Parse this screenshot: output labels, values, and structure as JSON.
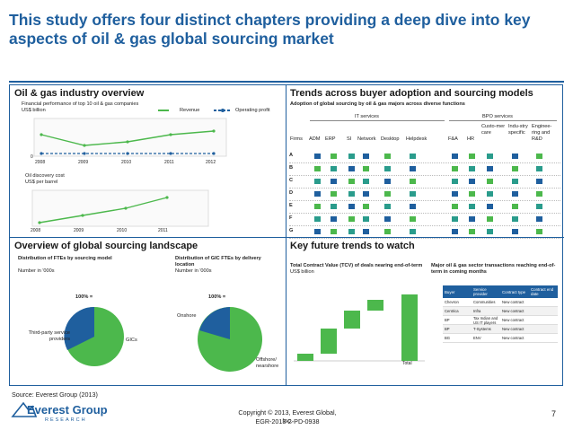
{
  "title": "This study offers four distinct chapters providing a deep dive into key aspects of oil & gas global sourcing market",
  "panels": {
    "tl": {
      "title": "Oil & gas industry overview",
      "chart1_title": "Financial performance of top 10 oil & gas companies",
      "chart1_unit": "US$ billion",
      "legend_revenue": "Revenue",
      "legend_op": "Operating profit",
      "zero": "0",
      "years1": [
        "2008",
        "2009",
        "2010",
        "2011",
        "2012"
      ],
      "chart2_title": "Oil discovery cost",
      "chart2_unit": "US$ per barrel",
      "years2": [
        "2008",
        "2009",
        "2010",
        "2011"
      ]
    },
    "tr": {
      "title": "Trends across buyer adoption and sourcing models",
      "subtitle": "Adoption of global sourcing by oil & gas majors across diverse functions",
      "it_services": "IT services",
      "bpo_services": "BPO services",
      "columns": [
        "Firms",
        "ADM",
        "ERP",
        "SI",
        "Network",
        "Desktop",
        "Helpdesk",
        "F&A",
        "HR",
        "Custo-mer care",
        "Indu-stry specific",
        "Enginee-ring and R&D"
      ],
      "rows": [
        "A",
        "B",
        "C",
        "D",
        "E",
        "F",
        "G"
      ]
    },
    "bl": {
      "title": "Overview of global sourcing landscape",
      "left_title": "Distribution of FTEs by sourcing model",
      "left_unit": "Number in '000s",
      "right_title": "Distribution of GIC FTEs by delivery location",
      "right_unit": "Number in '000s",
      "pct1": "100% =",
      "pct2": "100% =",
      "label_third": "Third-party service providers",
      "label_gics": "GICs",
      "label_onshore": "Onshore",
      "label_offshore": "Offshore/ nearshore"
    },
    "br": {
      "title": "Key future trends to watch",
      "left_title": "Total Contract Value (TCV) of deals nearing end-of-term",
      "left_unit": "US$ billion",
      "total": "Total",
      "right_title": "Major oil & gas sector transactions reaching end-of-term in coming months",
      "table_headers": [
        "Buyer",
        "Service provider",
        "Contract type",
        "Contract end date"
      ],
      "table_buyers": [
        "Chevron",
        "Centrica",
        "BP",
        "BP",
        "BG"
      ],
      "table_providers": [
        "Communities",
        "Infra",
        "Tax Indian and US IT players",
        "T-Systems",
        "ENV"
      ],
      "table_types": [
        "New contract",
        "New contract",
        "New contract",
        "New contract",
        "New contract"
      ]
    }
  },
  "source": "Source:    Everest Group (2013)",
  "logo": {
    "name": "Everest Group",
    "sub": "RESEARCH"
  },
  "copyright": "Copyright © 2013, Everest Global, Inc.",
  "code": "EGR-2013-2-PD-0938",
  "page": "7",
  "colors": {
    "brand": "#1f5f9e",
    "green": "#4cb84c",
    "teal": "#2a9c8c"
  }
}
